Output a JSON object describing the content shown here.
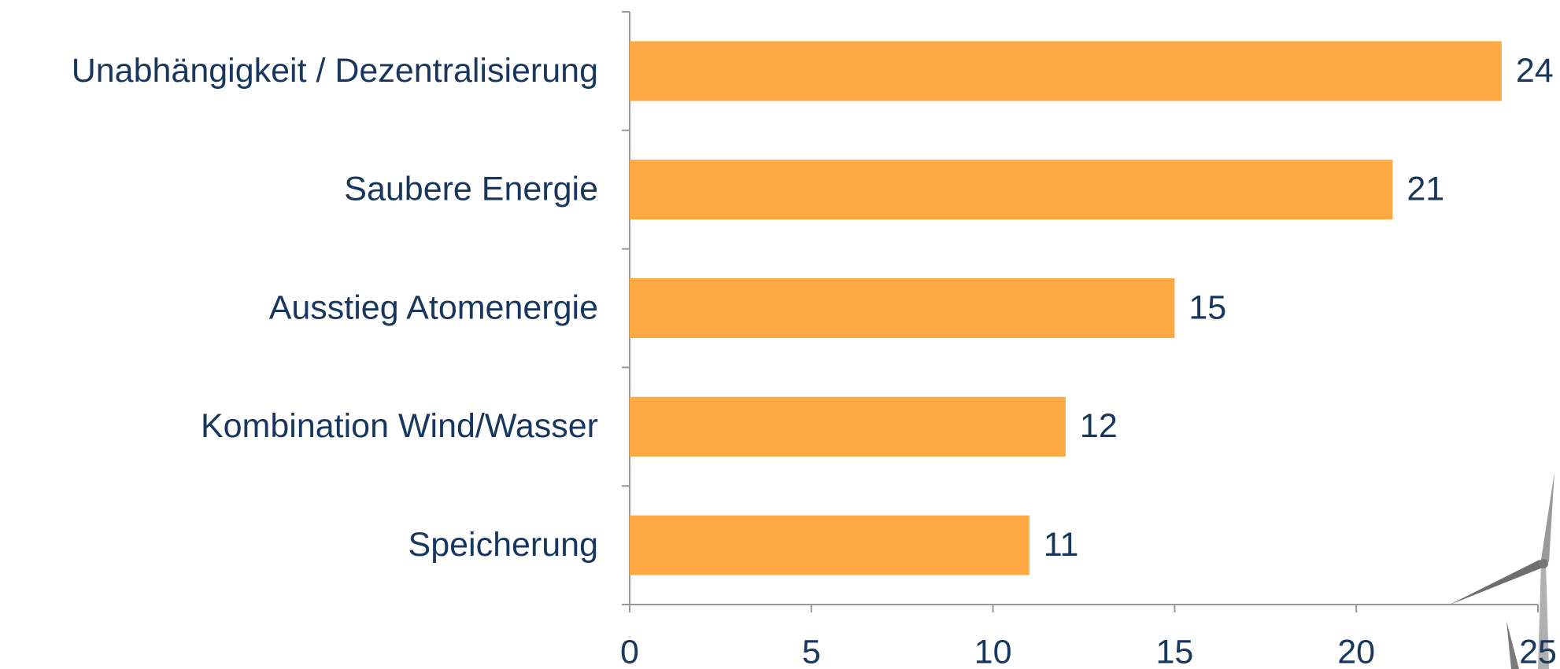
{
  "chart_data": {
    "type": "hbar",
    "categories": [
      "Unabhängigkeit / Dezentralisierung",
      "Saubere Energie",
      "Ausstieg Atomenergie",
      "Kombination Wind/Wasser",
      "Speicherung"
    ],
    "values": [
      24,
      21,
      15,
      12,
      11
    ],
    "color": "#ffa944",
    "xlim": [
      0,
      25
    ],
    "xticks": [
      0,
      5,
      10,
      15,
      20,
      25
    ]
  }
}
